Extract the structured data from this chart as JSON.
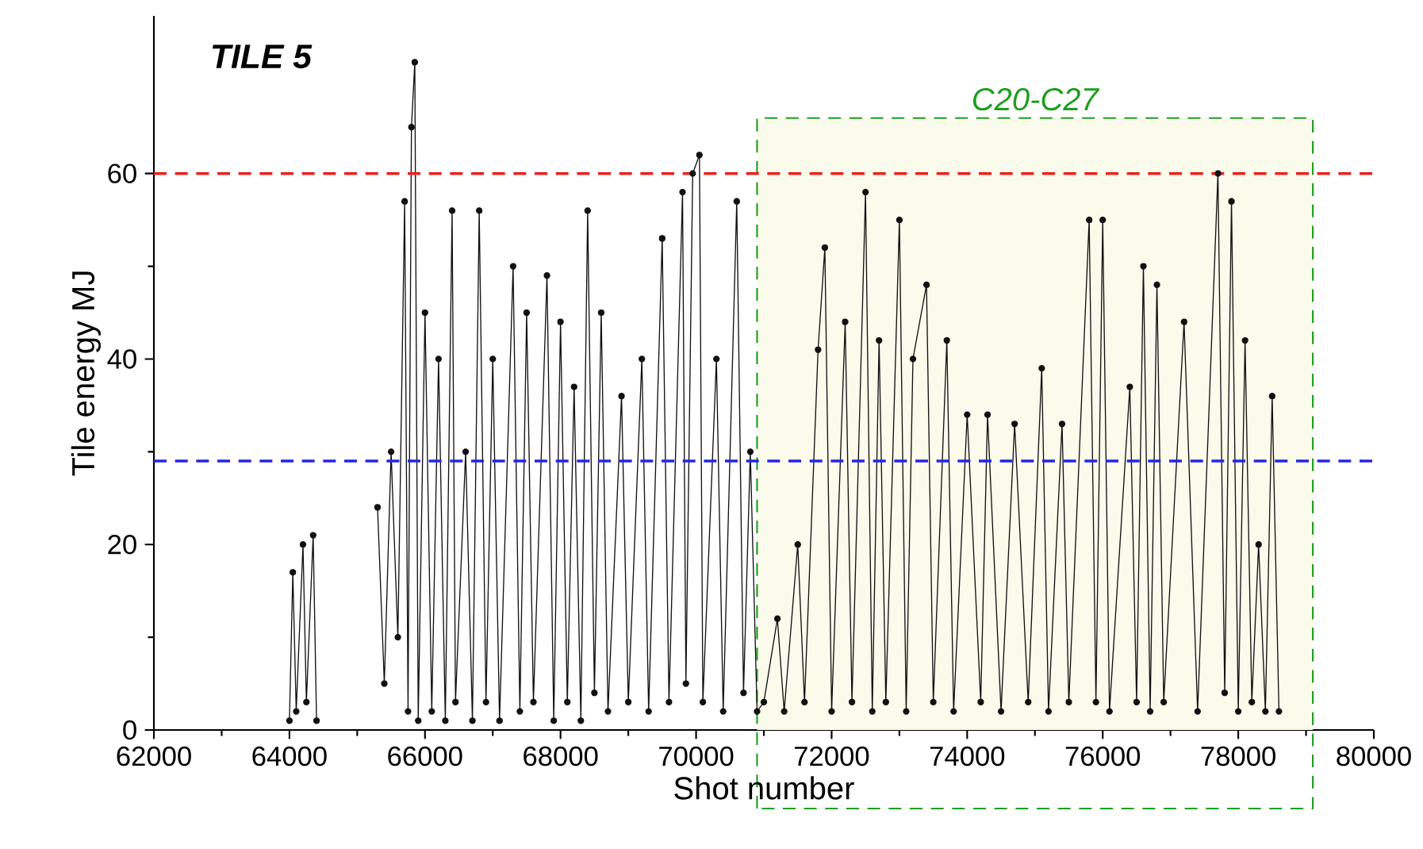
{
  "chart_data": {
    "type": "line",
    "xlabel": "Shot number",
    "ylabel": "Tile energy MJ",
    "annotations": [
      "TILE 5"
    ],
    "xlim": [
      62000,
      80000
    ],
    "ylim": [
      0,
      77
    ],
    "xticks": [
      62000,
      64000,
      66000,
      68000,
      70000,
      72000,
      74000,
      76000,
      78000,
      80000
    ],
    "yticks": [
      0,
      20,
      40,
      60
    ],
    "grid": false,
    "marker": "circle",
    "line_style": "solid",
    "ref_lines": [
      {
        "axis": "y",
        "value": 60,
        "color": "#e8231f",
        "line_style": "dashed"
      },
      {
        "axis": "y",
        "value": 29,
        "color": "#2525e6",
        "line_style": "dashed"
      }
    ],
    "bands": [
      {
        "axis": "x",
        "from": 70900,
        "to": 79100,
        "label": "C20-C27",
        "color": "#fbfbec"
      }
    ],
    "x": [
      64000,
      64050,
      64100,
      64200,
      64250,
      64350,
      64400,
      64800,
      65300,
      65400,
      65500,
      65600,
      65700,
      65750,
      65800,
      65850,
      65900,
      66000,
      66100,
      66200,
      66300,
      66400,
      66450,
      66600,
      66700,
      66800,
      66900,
      67000,
      67100,
      67300,
      67400,
      67500,
      67600,
      67800,
      67900,
      68000,
      68100,
      68200,
      68300,
      68400,
      68500,
      68600,
      68700,
      68900,
      69000,
      69200,
      69300,
      69500,
      69600,
      69800,
      69850,
      69950,
      70050,
      70100,
      70300,
      70400,
      70600,
      70700,
      70800,
      70900,
      71000,
      71200,
      71300,
      71500,
      71600,
      71800,
      71900,
      72000,
      72200,
      72300,
      72500,
      72600,
      72700,
      72800,
      73000,
      73100,
      73200,
      73400,
      73500,
      73700,
      73800,
      74000,
      74200,
      74300,
      74500,
      74700,
      74900,
      75100,
      75200,
      75400,
      75500,
      75800,
      75900,
      76000,
      76100,
      76400,
      76500,
      76600,
      76700,
      76800,
      76900,
      77200,
      77400,
      77700,
      77800,
      77900,
      78000,
      78100,
      78200,
      78300,
      78400,
      78500,
      78600
    ],
    "series": [
      {
        "color": "#111111",
        "values": [
          1,
          17,
          2,
          20,
          3,
          21,
          1,
          null,
          24,
          5,
          30,
          10,
          57,
          2,
          65,
          72,
          1,
          45,
          2,
          40,
          1,
          56,
          3,
          30,
          1,
          56,
          3,
          40,
          1,
          50,
          2,
          45,
          3,
          49,
          1,
          44,
          3,
          37,
          1,
          56,
          4,
          45,
          2,
          36,
          3,
          40,
          2,
          53,
          3,
          58,
          5,
          60,
          62,
          3,
          40,
          2,
          57,
          4,
          30,
          2,
          3,
          12,
          2,
          20,
          3,
          41,
          52,
          2,
          44,
          3,
          58,
          2,
          42,
          3,
          55,
          2,
          40,
          48,
          3,
          42,
          2,
          34,
          3,
          34,
          2,
          33,
          3,
          39,
          2,
          33,
          3,
          55,
          3,
          55,
          2,
          37,
          3,
          50,
          2,
          48,
          3,
          44,
          2,
          60,
          4,
          57,
          2,
          42,
          3,
          20,
          2,
          36,
          2
        ]
      }
    ]
  }
}
